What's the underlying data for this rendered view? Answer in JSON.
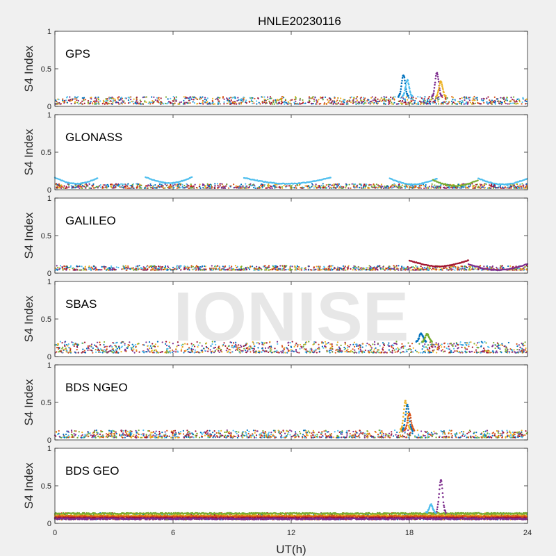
{
  "chart_data": {
    "type": "scatter",
    "title": "HNLE20230116",
    "xlabel": "UT(h)",
    "ylabel": "S4 Index",
    "watermark": "IONISE",
    "xlim": [
      0,
      24
    ],
    "xticks": [
      0,
      6,
      12,
      18,
      24
    ],
    "xtick_labels": [
      "0",
      "6",
      "12",
      "18",
      "24"
    ],
    "ylim": [
      0,
      1
    ],
    "yticks": [
      0,
      0.5,
      1
    ],
    "ytick_labels": [
      "0",
      "0.5",
      "1"
    ],
    "grid": false,
    "series_colors": [
      "#0072BD",
      "#D95319",
      "#EDB120",
      "#7E2F8E",
      "#77AC30",
      "#4DBEEE",
      "#A2142F"
    ],
    "panels": [
      {
        "label": "GPS",
        "baseline_s4": [
          0.03,
          0.13
        ],
        "spikes": [
          {
            "x": 17.7,
            "y": 0.42,
            "color": "#0072BD"
          },
          {
            "x": 17.9,
            "y": 0.35,
            "color": "#4DBEEE"
          },
          {
            "x": 19.4,
            "y": 0.45,
            "color": "#7E2F8E"
          },
          {
            "x": 19.6,
            "y": 0.33,
            "color": "#EDB120"
          }
        ]
      },
      {
        "label": "GLONASS",
        "baseline_s4": [
          0.02,
          0.08
        ],
        "arcs": [
          {
            "x0": 0.0,
            "x1": 2.2,
            "y": 0.16,
            "color": "#4DBEEE"
          },
          {
            "x0": 4.6,
            "x1": 7.0,
            "y": 0.17,
            "color": "#4DBEEE"
          },
          {
            "x0": 9.6,
            "x1": 14.0,
            "y": 0.16,
            "color": "#4DBEEE"
          },
          {
            "x0": 17.0,
            "x1": 19.4,
            "y": 0.15,
            "color": "#4DBEEE"
          },
          {
            "x0": 19.2,
            "x1": 21.5,
            "y": 0.13,
            "color": "#77AC30"
          },
          {
            "x0": 21.5,
            "x1": 24.0,
            "y": 0.15,
            "color": "#4DBEEE"
          }
        ],
        "spikes": []
      },
      {
        "label": "GALILEO",
        "baseline_s4": [
          0.04,
          0.1
        ],
        "arcs": [
          {
            "x0": 18.0,
            "x1": 21.0,
            "y": 0.17,
            "color": "#A2142F"
          },
          {
            "x0": 21.0,
            "x1": 24.0,
            "y": 0.12,
            "color": "#7E2F8E"
          }
        ],
        "spikes": []
      },
      {
        "label": "SBAS",
        "baseline_s4": [
          0.05,
          0.2
        ],
        "spikes": [
          {
            "x": 18.6,
            "y": 0.31,
            "color": "#0072BD"
          },
          {
            "x": 18.9,
            "y": 0.3,
            "color": "#77AC30"
          }
        ]
      },
      {
        "label": "BDS NGEO",
        "baseline_s4": [
          0.03,
          0.13
        ],
        "spikes": [
          {
            "x": 17.8,
            "y": 0.52,
            "color": "#EDB120"
          },
          {
            "x": 17.9,
            "y": 0.47,
            "color": "#0072BD"
          },
          {
            "x": 18.0,
            "y": 0.35,
            "color": "#D95319"
          }
        ]
      },
      {
        "label": "BDS GEO",
        "baseline_s4": [
          0.05,
          0.14
        ],
        "bands": [
          {
            "y": 0.13,
            "color": "#77AC30"
          },
          {
            "y": 0.1,
            "color": "#EDB120"
          },
          {
            "y": 0.09,
            "color": "#D95319"
          },
          {
            "y": 0.07,
            "color": "#A2142F"
          },
          {
            "y": 0.06,
            "color": "#7E2F8E"
          }
        ],
        "spikes": [
          {
            "x": 19.6,
            "y": 0.58,
            "color": "#7E2F8E"
          },
          {
            "x": 19.1,
            "y": 0.25,
            "color": "#4DBEEE"
          }
        ]
      }
    ]
  }
}
